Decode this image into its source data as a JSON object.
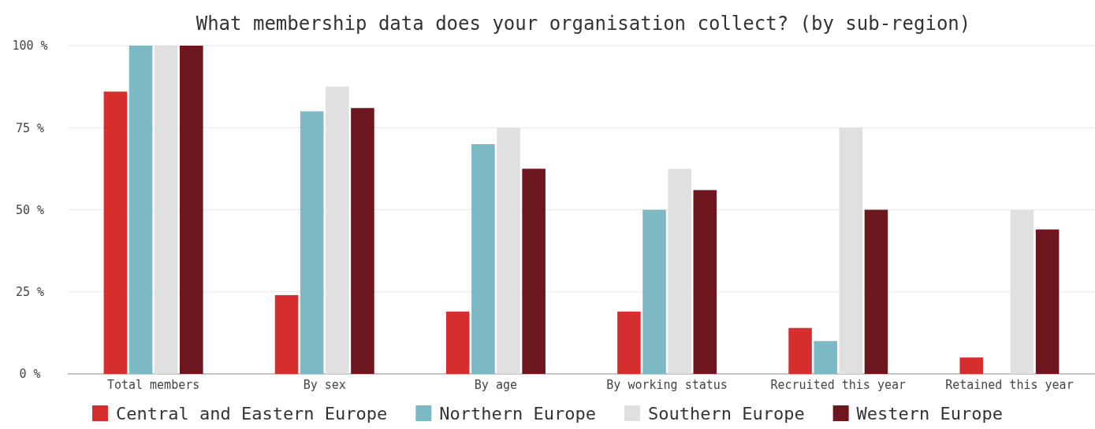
{
  "chart_data": {
    "type": "bar",
    "title": "What membership data does your organisation collect? (by sub-region)",
    "categories": [
      "Total members",
      "By sex",
      "By age",
      "By working status",
      "Recruited this year",
      "Retained this year"
    ],
    "series": [
      {
        "name": "Central and Eastern Europe",
        "color": "#d62e2e",
        "values": [
          86,
          24,
          19,
          19,
          14,
          5
        ]
      },
      {
        "name": "Northern Europe",
        "color": "#7db9c4",
        "values": [
          100,
          80,
          70,
          50,
          10,
          0
        ]
      },
      {
        "name": "Southern Europe",
        "color": "#e0e0e0",
        "values": [
          100,
          87.5,
          75,
          62.5,
          75,
          50
        ]
      },
      {
        "name": "Western Europe",
        "color": "#6e161e",
        "values": [
          100,
          81,
          62.5,
          56,
          50,
          44
        ]
      }
    ],
    "ylim": [
      0,
      100
    ],
    "yticks": [
      {
        "value": 0,
        "label": "0 %"
      },
      {
        "value": 25,
        "label": "25 %"
      },
      {
        "value": 50,
        "label": "50 %"
      },
      {
        "value": 75,
        "label": "75 %"
      },
      {
        "value": 100,
        "label": "100 %"
      }
    ],
    "grid": "y",
    "legend": "bottom"
  }
}
